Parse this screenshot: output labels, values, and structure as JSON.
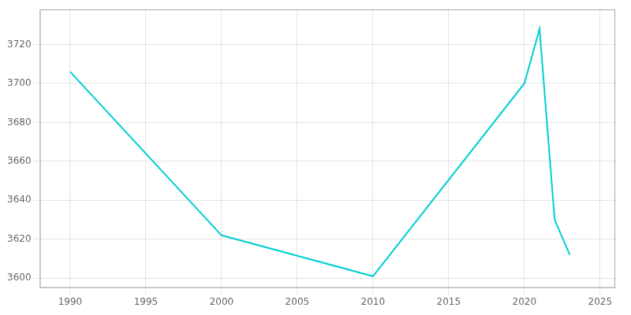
{
  "chart_data": {
    "type": "line",
    "x": [
      1990,
      2000,
      2010,
      2020,
      2021,
      2022,
      2023
    ],
    "values": [
      3706,
      3622,
      3601,
      3700,
      3728,
      3630,
      3612
    ],
    "color": "#00CED1",
    "xlim": [
      1988,
      2026
    ],
    "xticks": [
      1990,
      1995,
      2000,
      2005,
      2010,
      2015,
      2020,
      2025
    ],
    "ylim": [
      3595,
      3738
    ],
    "yticks": [
      3600,
      3620,
      3640,
      3660,
      3680,
      3700,
      3720
    ],
    "grid": true
  }
}
